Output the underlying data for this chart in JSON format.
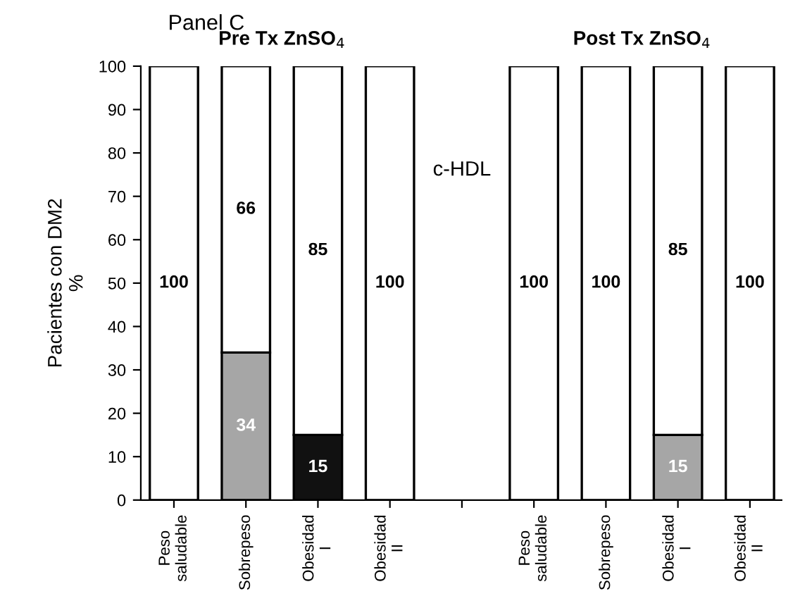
{
  "chart_data": {
    "type": "bar",
    "title": "Panel C",
    "ylabel": "Pacientes con DM2\n%",
    "annotations": [
      "Pre Tx ZnSO$_{4}$",
      "Post Tx ZnSO$_{4}$",
      "c-HDL"
    ],
    "categories": [
      "Peso\nsaludable",
      "Sobrepeso",
      "Obesidad\nI",
      "Obesidad\nII",
      null,
      "Peso\nsaludable",
      "Sobrepeso",
      "Obesidad\nI",
      "Obesidad\nII"
    ],
    "stacked": true,
    "series": [
      {
        "colors": [
          "#ffffff",
          "#a6a6a6",
          "#111111",
          "#ffffff",
          "#ffffff",
          "#ffffff",
          "#ffffff",
          "#a6a6a6",
          "#ffffff"
        ],
        "values": [
          0,
          34,
          15,
          0,
          null,
          0,
          0,
          15,
          0
        ],
        "value_labels": [
          null,
          "34",
          "15",
          null,
          null,
          null,
          null,
          "15",
          null
        ]
      },
      {
        "color": "#ffffff",
        "values": [
          100,
          66,
          85,
          100,
          null,
          100,
          100,
          85,
          100
        ],
        "value_labels": [
          "100",
          "66",
          "85",
          "100",
          null,
          "100",
          "100",
          "85",
          "100"
        ]
      }
    ],
    "ylim": [
      0,
      100
    ],
    "yticks": [
      0,
      10,
      20,
      30,
      40,
      50,
      60,
      70,
      80,
      90,
      100
    ],
    "grid": false,
    "legend": false
  }
}
